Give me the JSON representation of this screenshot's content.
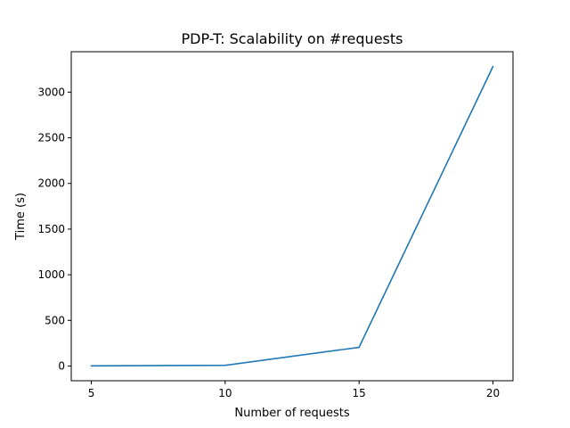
{
  "chart_data": {
    "type": "line",
    "title": "PDP-T: Scalability on #requests",
    "xlabel": "Number of requests",
    "ylabel": "Time (s)",
    "x": [
      5,
      10,
      15,
      20
    ],
    "series": [
      {
        "values": [
          2,
          8,
          205,
          3280
        ],
        "color": "#1f77b4"
      }
    ],
    "xlim": [
      4.25,
      20.75
    ],
    "ylim": [
      -161,
      3443
    ],
    "xticks": [
      5,
      10,
      15,
      20
    ],
    "xtick_labels": [
      "5",
      "10",
      "15",
      "20"
    ],
    "yticks": [
      0,
      500,
      1000,
      1500,
      2000,
      2500,
      3000
    ],
    "ytick_labels": [
      "0",
      "500",
      "1000",
      "1500",
      "2000",
      "2500",
      "3000"
    ],
    "grid": false,
    "legend": "none"
  }
}
